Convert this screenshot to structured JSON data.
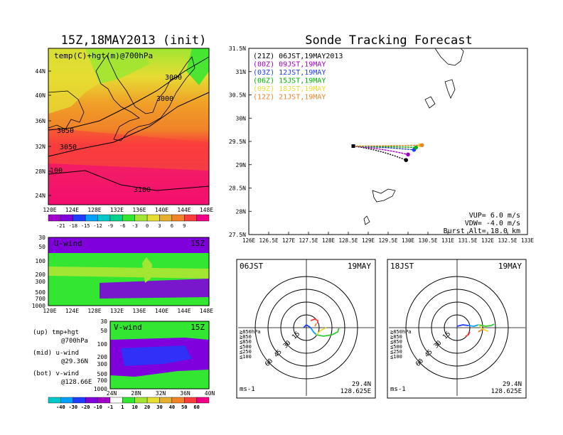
{
  "left_title": "15Z,18MAY2013 (init)",
  "right_title": "Sonde Tracking Forecast",
  "temp_map": {
    "label": "temp(C)+hgt(m)@700hPa",
    "lat_ticks": [
      "44N",
      "40N",
      "36N",
      "32N",
      "28N",
      "24N"
    ],
    "lon_ticks": [
      "120E",
      "124E",
      "128E",
      "132E",
      "136E",
      "140E",
      "144E",
      "148E"
    ],
    "contour_labels": [
      "3000",
      "3050",
      "3000",
      "3050",
      "100",
      "3100"
    ],
    "colorbar": [
      "-21",
      "-18",
      "-15",
      "-12",
      "-9",
      "-6",
      "-3",
      "0",
      "3",
      "6",
      "9"
    ],
    "colorbar_colors": [
      "#a000c8",
      "#7f00dc",
      "#1e3cff",
      "#00a0ff",
      "#00c8c8",
      "#00d28c",
      "#32e632",
      "#a0e632",
      "#e6dc32",
      "#e6af2d",
      "#f08228",
      "#fa3c3c",
      "#f00082"
    ]
  },
  "u_wind": {
    "label": "U-wind",
    "time": "15Z",
    "p_ticks": [
      "30",
      "50",
      "100",
      "200",
      "300",
      "500",
      "700",
      "1000"
    ],
    "lon_ticks": [
      "120E",
      "124E",
      "128E",
      "132E",
      "136E",
      "140E",
      "144E",
      "148E"
    ]
  },
  "v_wind": {
    "label": "V-wind",
    "time": "15Z",
    "p_ticks": [
      "30",
      "50",
      "100",
      "200",
      "300",
      "500",
      "700",
      "1000"
    ],
    "lat_ticks": [
      "24N",
      "28N",
      "32N",
      "36N",
      "40N"
    ],
    "colorbar": [
      "-40",
      "-30",
      "-20",
      "-10",
      "-1",
      "1",
      "10",
      "20",
      "30",
      "40",
      "50",
      "60"
    ],
    "colorbar_colors": [
      "#00c8c8",
      "#00a0ff",
      "#1e3cff",
      "#7f00dc",
      "#a000c8",
      "#ffffff",
      "#32e632",
      "#a0e632",
      "#e6dc32",
      "#e6af2d",
      "#f08228",
      "#fa3c3c",
      "#f00082"
    ]
  },
  "notes": [
    {
      "line1": "(up) tmp+hgt",
      "line2": "@700hPa"
    },
    {
      "line1": "(mid) u-wind",
      "line2": "@29.36N"
    },
    {
      "line1": "(bot) v-wind",
      "line2": "@128.66E"
    }
  ],
  "track": {
    "lat_ticks": [
      "31.5N",
      "31N",
      "30.5N",
      "30N",
      "29.5N",
      "29N",
      "28.5N",
      "28N",
      "27.5N"
    ],
    "lon_ticks": [
      "126E",
      "126.5E",
      "127E",
      "127.5E",
      "128E",
      "128.5E",
      "129E",
      "129.5E",
      "130E",
      "130.5E",
      "131E",
      "131.5E",
      "132E",
      "132.5E",
      "133E"
    ],
    "legend": [
      {
        "text": "(21Z) 06JST,19MAY2013",
        "color": "#000000"
      },
      {
        "text": "(00Z) 09JST,19MAY",
        "color": "#a000c8"
      },
      {
        "text": "(03Z) 12JST,19MAY",
        "color": "#1e3cff"
      },
      {
        "text": "(06Z) 15JST,19MAY",
        "color": "#00b400"
      },
      {
        "text": "(09Z) 18JST,19MAY",
        "color": "#e6dc32"
      },
      {
        "text": "(12Z) 21JST,19MAY",
        "color": "#f08228"
      }
    ],
    "params": [
      "VUP= 6.0 m/s",
      "VDW= -4.0 m/s",
      "Burst Alt= 18.0 km"
    ],
    "launch": {
      "lon": 128.625,
      "lat": 29.4
    },
    "endpoints": [
      {
        "lon": 129.95,
        "lat": 29.1,
        "color": "#000000"
      },
      {
        "lon": 130.0,
        "lat": 29.22,
        "color": "#a000c8"
      },
      {
        "lon": 130.15,
        "lat": 29.32,
        "color": "#1e3cff"
      },
      {
        "lon": 130.2,
        "lat": 29.37,
        "color": "#00b400"
      },
      {
        "lon": 130.3,
        "lat": 29.42,
        "color": "#e6dc32"
      },
      {
        "lon": 130.35,
        "lat": 29.42,
        "color": "#f08228"
      }
    ]
  },
  "hodo_left": {
    "time": "06JST",
    "date": "19MAY",
    "ring_labels": [
      "15",
      "30",
      "45",
      "60"
    ],
    "levels": [
      {
        "text": "≧850hPa",
        "color": "#fa3c3c"
      },
      {
        "text": "≧850",
        "color": "#f08228"
      },
      {
        "text": "≦850",
        "color": "#e6dc32"
      },
      {
        "text": "≦500",
        "color": "#32c832"
      },
      {
        "text": "≦250",
        "color": "#00a0ff"
      },
      {
        "text": "≦100",
        "color": "#1e3cff"
      }
    ],
    "unit": "ms-1",
    "lat": "29.4N",
    "lon": "128.625E"
  },
  "hodo_right": {
    "time": "18JST",
    "date": "19MAY",
    "ring_labels": [
      "15",
      "30",
      "45",
      "60"
    ],
    "levels": [
      {
        "text": "≧850hPa",
        "color": "#fa3c3c"
      },
      {
        "text": "≧850",
        "color": "#f08228"
      },
      {
        "text": "≦850",
        "color": "#e6dc32"
      },
      {
        "text": "≦500",
        "color": "#32c832"
      },
      {
        "text": "≦250",
        "color": "#00a0ff"
      },
      {
        "text": "≦100",
        "color": "#1e3cff"
      }
    ],
    "unit": "ms-1",
    "lat": "29.4N",
    "lon": "128.625E"
  }
}
